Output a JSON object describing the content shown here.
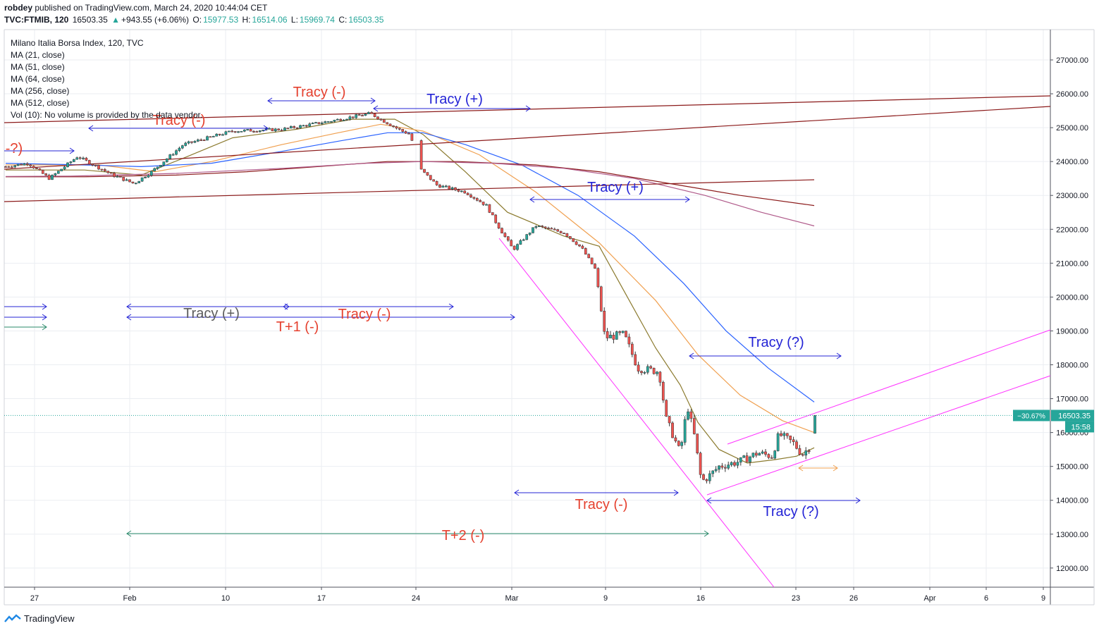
{
  "header": {
    "author": "robdey",
    "published": "published on TradingView.com, March 24, 2020 10:44:04 CET",
    "symbol": "TVC:FTMIB, 120",
    "last": "16503.35",
    "change": "+943.55 (+6.06%)",
    "o_label": "O:",
    "o_val": "15977.53",
    "h_label": "H:",
    "h_val": "16514.06",
    "l_label": "L:",
    "l_val": "15969.74",
    "c_label": "C:",
    "c_val": "16503.35"
  },
  "legend": [
    "Milano Italia Borsa Index, 120, TVC",
    "MA (21, close)",
    "MA (51, close)",
    "MA (64, close)",
    "MA (256, close)",
    "MA (512, close)",
    "Vol (10): No volume is provided by the data vendor."
  ],
  "footer": {
    "brand": "TradingView"
  },
  "colors": {
    "up": "#26a69a",
    "down": "#ef5350",
    "grid": "#ebeef2",
    "ma21": "#8b7a2e",
    "ma51": "#f0a050",
    "ma64": "#2962ff",
    "ma256": "#8b1a1a",
    "ma512": "#b05a8a",
    "annot_blue": "#2424d6",
    "annot_red": "#e5412f",
    "annot_gray": "#5c5c5c",
    "annot_green": "#2a8a6a",
    "channel": "#ff30ff",
    "orange": "#f0a050"
  },
  "chart_data": {
    "type": "candlestick",
    "title": "Milano Italia Borsa Index, 120, TVC",
    "ylim": [
      11500,
      27800
    ],
    "y_ticks": [
      12000,
      13000,
      14000,
      15000,
      16000,
      17000,
      18000,
      19000,
      20000,
      21000,
      22000,
      23000,
      24000,
      25000,
      26000,
      27000
    ],
    "x_ticks": [
      "27",
      "Feb",
      "10",
      "17",
      "24",
      "Mar",
      "9",
      "16",
      "23",
      "26",
      "Apr",
      "6",
      "9"
    ],
    "price_label": "16503.35",
    "change_label": "−30.67%",
    "countdown_label": "15:58",
    "annotations": [
      {
        "text": "Tracy (-)",
        "color": "red"
      },
      {
        "text": "Tracy (+)",
        "color": "blue"
      },
      {
        "text": "Tracy (-)",
        "color": "red"
      },
      {
        "text": "-?)",
        "color": "red"
      },
      {
        "text": "Tracy (+)",
        "color": "blue"
      },
      {
        "text": "Tracy (+)",
        "color": "gray"
      },
      {
        "text": "Tracy (-)",
        "color": "red"
      },
      {
        "text": "T+1 (-)",
        "color": "red"
      },
      {
        "text": "Tracy (?)",
        "color": "blue"
      },
      {
        "text": "Tracy (-)",
        "color": "red"
      },
      {
        "text": "Tracy (?)",
        "color": "blue"
      },
      {
        "text": "T+2 (-)",
        "color": "red"
      }
    ]
  }
}
